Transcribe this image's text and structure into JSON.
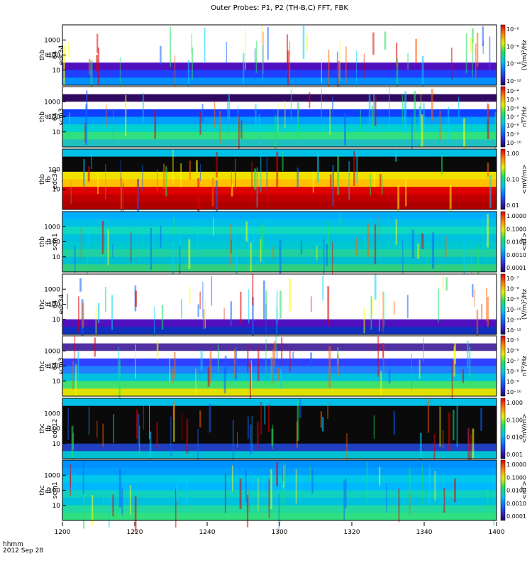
{
  "chart_data": {
    "type": "heatmap",
    "title": "Outer Probes: P1, P2 (TH-B,C) FFT, FBK",
    "xaxis": {
      "ticks": [
        "1200",
        "1220",
        "1240",
        "1300",
        "1320",
        "1340",
        "1400"
      ],
      "range": [
        "12:00",
        "14:00"
      ],
      "footer_label_1": "hhmm",
      "footer_label_2": "2012 Sep 28"
    },
    "panels": [
      {
        "name": "thb-ff-64-edc34",
        "label_lines": [
          "thb",
          "ff",
          "64",
          "edc34"
        ],
        "yticks": [
          "10",
          "100",
          "1000"
        ],
        "yscale": "log",
        "colorbar_label": "(V/m)²/Hz",
        "colorbar_ticks": [
          "10⁻⁶",
          "10⁻⁸",
          "10⁻¹⁰",
          "10⁻¹²"
        ]
      },
      {
        "name": "thb-ff-64-scm3",
        "label_lines": [
          "thb",
          "ff",
          "64",
          "scm3"
        ],
        "yticks": [
          "10",
          "100",
          "1000"
        ],
        "yscale": "log",
        "colorbar_label": "nT²/Hz",
        "colorbar_ticks": [
          "10⁻⁴",
          "10⁻⁵",
          "10⁻⁶",
          "10⁻⁷",
          "10⁻⁸",
          "10⁻⁹",
          "10⁻¹⁰"
        ]
      },
      {
        "name": "thb-fb-edc34",
        "label_lines": [
          "thb",
          "fb",
          "edc34"
        ],
        "yticks": [
          "10",
          "100"
        ],
        "yscale": "log",
        "colorbar_label": "<mV/m>",
        "colorbar_ticks": [
          "1.00",
          "0.10",
          "0.01"
        ]
      },
      {
        "name": "thb-fb-scm1",
        "label_lines": [
          "thb",
          "fb",
          "scm1"
        ],
        "yticks": [
          "10",
          "100",
          "1000"
        ],
        "yscale": "log",
        "colorbar_label": "<nT>",
        "colorbar_ticks": [
          "1.0000",
          "0.1000",
          "0.0100",
          "0.0010",
          "0.0001"
        ]
      },
      {
        "name": "thc-ff-64-edc34",
        "label_lines": [
          "thc",
          "ff",
          "64",
          "edc34"
        ],
        "yticks": [
          "10",
          "100",
          "1000"
        ],
        "yscale": "log",
        "colorbar_label": "(V/m)²/Hz",
        "colorbar_ticks": [
          "10⁻⁷",
          "10⁻⁸",
          "10⁻⁹",
          "10⁻¹⁰",
          "10⁻¹¹",
          "10⁻¹²"
        ]
      },
      {
        "name": "thc-ff-64-scm3",
        "label_lines": [
          "thc",
          "ff",
          "64",
          "scm3"
        ],
        "yticks": [
          "10",
          "100",
          "1000"
        ],
        "yscale": "log",
        "colorbar_label": "nT²/Hz",
        "colorbar_ticks": [
          "10⁻⁵",
          "10⁻⁶",
          "10⁻⁷",
          "10⁻⁸",
          "10⁻⁹",
          "10⁻¹⁰"
        ]
      },
      {
        "name": "thc-fb-edc12",
        "label_lines": [
          "thc",
          "fb",
          "edc12"
        ],
        "yticks": [
          "10",
          "100",
          "1000"
        ],
        "yscale": "log",
        "colorbar_label": "<mV/m>",
        "colorbar_ticks": [
          "1.000",
          "0.100",
          "0.010",
          "0.001"
        ]
      },
      {
        "name": "thc-fb-scm1",
        "label_lines": [
          "thc",
          "fb",
          "scm1"
        ],
        "yticks": [
          "10",
          "100",
          "1000"
        ],
        "yscale": "log",
        "colorbar_label": "<nT>",
        "colorbar_ticks": [
          "1.0000",
          "0.1000",
          "0.0100",
          "0.0010",
          "0.0001"
        ]
      }
    ]
  }
}
